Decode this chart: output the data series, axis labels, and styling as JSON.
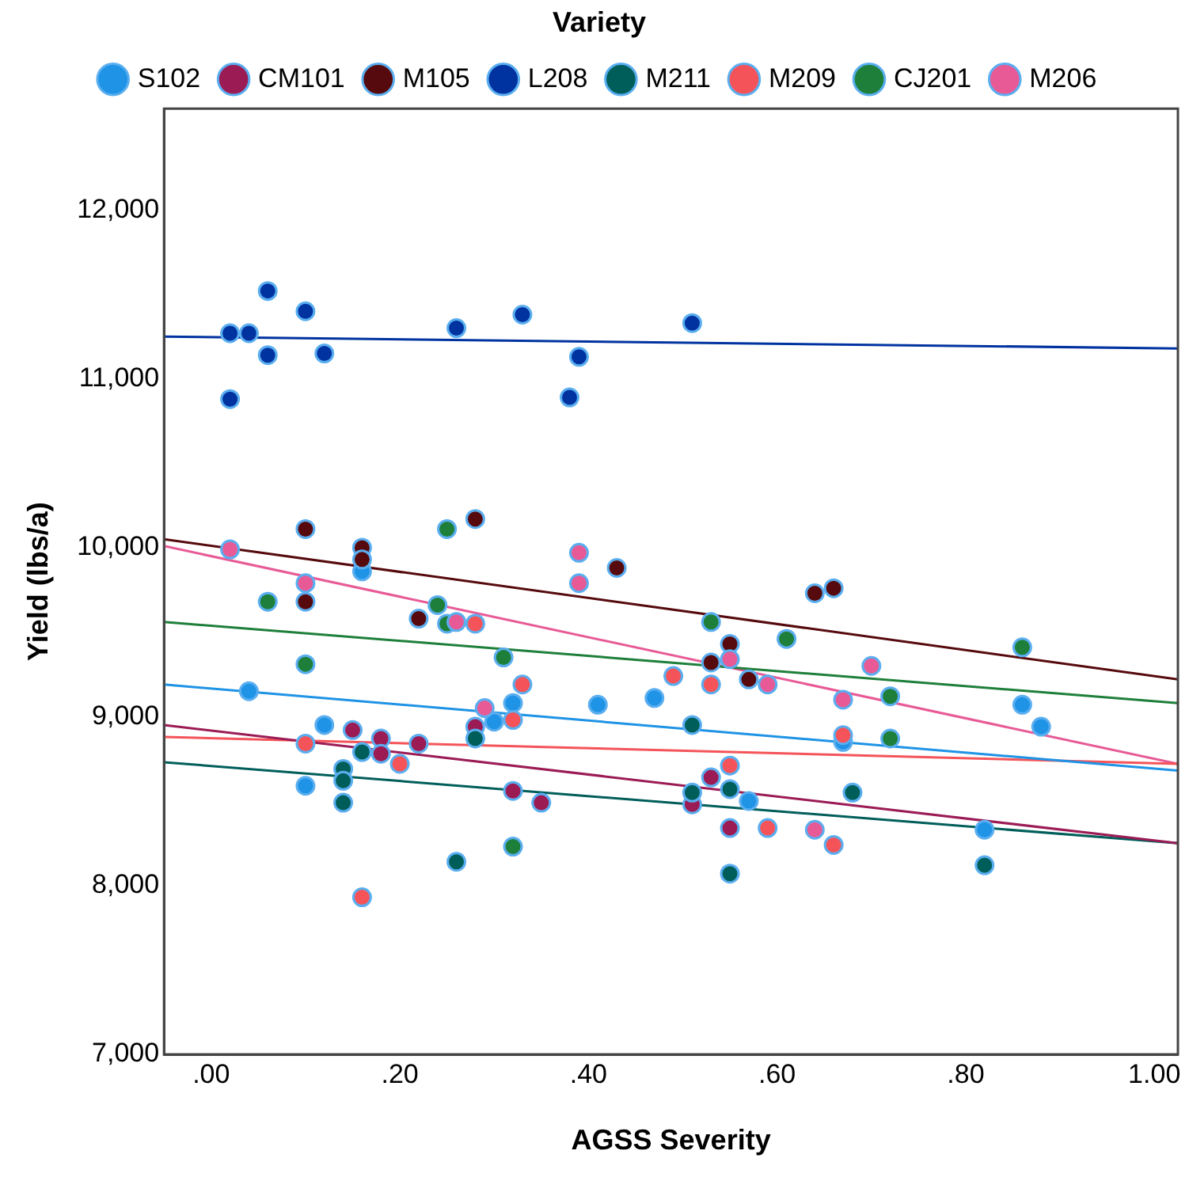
{
  "chart_data": {
    "type": "scatter",
    "xlabel": "AGSS Severity",
    "ylabel": "Yield (lbs/a)",
    "legend_title": "Variety",
    "legend": "top",
    "grid": false,
    "marker": "circle",
    "xlim": [
      -0.05,
      1.025
    ],
    "ylim": [
      7000,
      12600
    ],
    "xticks": [
      {
        "value": 0,
        "label": ".00"
      },
      {
        "value": 0.2,
        "label": ".20"
      },
      {
        "value": 0.4,
        "label": ".40"
      },
      {
        "value": 0.6,
        "label": ".60"
      },
      {
        "value": 0.8,
        "label": ".80"
      },
      {
        "value": 1,
        "label": "1.00"
      }
    ],
    "yticks": [
      {
        "value": 7000,
        "label": "7,000"
      },
      {
        "value": 8000,
        "label": "8,000"
      },
      {
        "value": 9000,
        "label": "9,000"
      },
      {
        "value": 10000,
        "label": "10,000"
      },
      {
        "value": 11000,
        "label": "11,000"
      },
      {
        "value": 12000,
        "label": "12,000"
      }
    ],
    "series": [
      {
        "name": "S102",
        "color": "#1f93e5",
        "x": [
          0.16,
          0.04,
          0.32,
          0.41,
          0.47,
          0.3,
          0.12,
          0.1,
          0.86,
          0.88,
          0.67,
          0.57,
          0.82
        ],
        "values": [
          9860,
          9150,
          9080,
          9070,
          9110,
          8970,
          8950,
          8590,
          9070,
          8940,
          8850,
          8500,
          8330
        ]
      },
      {
        "name": "CM101",
        "color": "#9b1b55",
        "x": [
          0.15,
          0.28,
          0.18,
          0.18,
          0.22,
          0.32,
          0.35,
          0.53,
          0.51,
          0.55
        ],
        "values": [
          8920,
          8940,
          8870,
          8780,
          8840,
          8560,
          8490,
          8640,
          8480,
          8340
        ]
      },
      {
        "name": "M105",
        "color": "#560a0d",
        "x": [
          0.1,
          0.16,
          0.16,
          0.28,
          0.43,
          0.1,
          0.22,
          0.64,
          0.66,
          0.55,
          0.53,
          0.57
        ],
        "values": [
          10110,
          10000,
          9930,
          10170,
          9880,
          9680,
          9580,
          9730,
          9760,
          9430,
          9320,
          9220
        ]
      },
      {
        "name": "L208",
        "color": "#0033a0",
        "x": [
          0.02,
          0.04,
          0.06,
          0.1,
          0.06,
          0.12,
          0.02,
          0.26,
          0.33,
          0.39,
          0.38,
          0.51
        ],
        "values": [
          11270,
          11270,
          11520,
          11400,
          11140,
          11150,
          10880,
          11300,
          11380,
          11130,
          10890,
          11330
        ]
      },
      {
        "name": "M211",
        "color": "#005e5a",
        "x": [
          0.28,
          0.16,
          0.14,
          0.14,
          0.14,
          0.26,
          0.51,
          0.51,
          0.55,
          0.68,
          0.82,
          0.55
        ],
        "values": [
          8870,
          8790,
          8690,
          8620,
          8490,
          8140,
          8950,
          8550,
          8570,
          8550,
          8120,
          8070
        ]
      },
      {
        "name": "M209",
        "color": "#f45459",
        "x": [
          0.28,
          0.33,
          0.49,
          0.32,
          0.1,
          0.2,
          0.16,
          0.53,
          0.67,
          0.55,
          0.59,
          0.66
        ],
        "values": [
          9550,
          9190,
          9240,
          8980,
          8840,
          8720,
          7930,
          9190,
          8890,
          8710,
          8340,
          8240
        ]
      },
      {
        "name": "CJ201",
        "color": "#1e7f3a",
        "x": [
          0.06,
          0.24,
          0.25,
          0.25,
          0.1,
          0.31,
          0.32,
          0.53,
          0.61,
          0.72,
          0.86,
          0.72
        ],
        "values": [
          9680,
          9660,
          9550,
          10110,
          9310,
          9350,
          8230,
          9560,
          9460,
          9120,
          9410,
          8870
        ]
      },
      {
        "name": "M206",
        "color": "#e85a96",
        "x": [
          0.02,
          0.1,
          0.26,
          0.39,
          0.39,
          0.29,
          0.55,
          0.59,
          0.7,
          0.67,
          0.64
        ],
        "values": [
          9990,
          9790,
          9560,
          9970,
          9790,
          9050,
          9340,
          9190,
          9300,
          9100,
          8330
        ]
      },
      {
        "type": "line",
        "marker": "none",
        "color": "#1f93e5",
        "x": [
          -0.05,
          1.025
        ],
        "values": [
          9190,
          8680
        ]
      },
      {
        "type": "line",
        "marker": "none",
        "color": "#9b1b55",
        "x": [
          -0.05,
          1.025
        ],
        "values": [
          8950,
          8250
        ]
      },
      {
        "type": "line",
        "marker": "none",
        "color": "#560a0d",
        "x": [
          -0.05,
          1.025
        ],
        "values": [
          10050,
          9220
        ]
      },
      {
        "type": "line",
        "marker": "none",
        "color": "#0033a0",
        "x": [
          -0.05,
          1.025
        ],
        "values": [
          11250,
          11180
        ]
      },
      {
        "type": "line",
        "marker": "none",
        "color": "#005e5a",
        "x": [
          -0.05,
          1.025
        ],
        "values": [
          8730,
          8250
        ]
      },
      {
        "type": "line",
        "marker": "none",
        "color": "#f45459",
        "x": [
          -0.05,
          1.025
        ],
        "values": [
          8880,
          8720
        ]
      },
      {
        "type": "line",
        "marker": "none",
        "color": "#1e7f3a",
        "x": [
          -0.05,
          1.025
        ],
        "values": [
          9560,
          9080
        ]
      },
      {
        "type": "line",
        "marker": "none",
        "color": "#e85a96",
        "x": [
          -0.05,
          1.025
        ],
        "values": [
          10010,
          8720
        ]
      }
    ]
  }
}
